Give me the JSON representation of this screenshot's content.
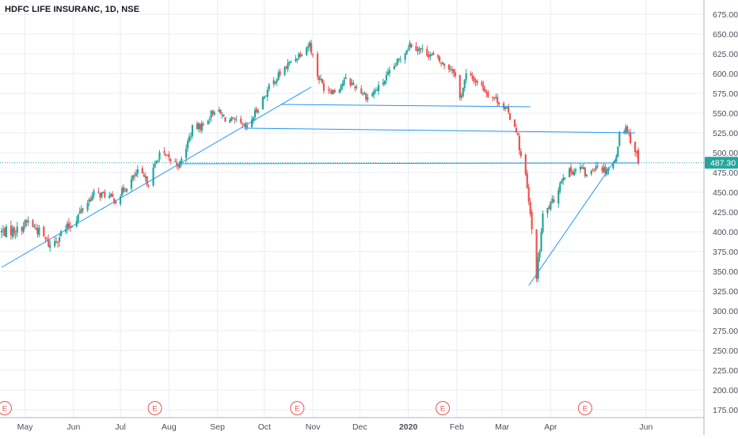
{
  "header": {
    "title": "HDFC LIFE INSURANC, 1D, NSE"
  },
  "colors": {
    "up": "#26a69a",
    "down": "#ef5350",
    "line": "#2196f3",
    "grid": "#e8eef6",
    "axis_text": "#4a4f5c",
    "price_label_bg": "#26a69a",
    "earnings": "#ef5350"
  },
  "chart_data": {
    "type": "candlestick",
    "title": "HDFC LIFE INSURANC, 1D, NSE",
    "ylim": [
      165,
      685
    ],
    "y_ticks": [
      "675.00",
      "650.00",
      "625.00",
      "600.00",
      "575.00",
      "550.00",
      "525.00",
      "500.00",
      "475.00",
      "450.00",
      "425.00",
      "400.00",
      "375.00",
      "350.00",
      "325.00",
      "300.00",
      "275.00",
      "250.00",
      "225.00",
      "200.00",
      "175.00"
    ],
    "x_ticks": [
      {
        "label": "May",
        "date": "2019-05-01"
      },
      {
        "label": "Jun",
        "date": "2019-06-01"
      },
      {
        "label": "Jul",
        "date": "2019-07-01"
      },
      {
        "label": "Aug",
        "date": "2019-08-01"
      },
      {
        "label": "Sep",
        "date": "2019-09-01"
      },
      {
        "label": "Oct",
        "date": "2019-10-01"
      },
      {
        "label": "Nov",
        "date": "2019-11-01"
      },
      {
        "label": "Dec",
        "date": "2019-12-01"
      },
      {
        "label": "2020",
        "date": "2020-01-01",
        "bold": true
      },
      {
        "label": "Feb",
        "date": "2020-02-01"
      },
      {
        "label": "Mar",
        "date": "2020-03-01"
      },
      {
        "label": "Apr",
        "date": "2020-04-01"
      },
      {
        "label": "Jun",
        "date": "2020-06-01"
      }
    ],
    "x_range": [
      "2019-04-15",
      "2020-07-08"
    ],
    "last_price": {
      "label": "487.30",
      "value": 487.3
    },
    "earnings_markers": [
      {
        "label": "E",
        "date": "2019-04-18"
      },
      {
        "label": "E",
        "date": "2019-07-23"
      },
      {
        "label": "E",
        "date": "2019-10-22"
      },
      {
        "label": "E",
        "date": "2020-01-23"
      },
      {
        "label": "E",
        "date": "2020-04-23"
      }
    ],
    "trendlines": [
      {
        "name": "support-1",
        "from": [
          "2019-04-16",
          355
        ],
        "to": [
          "2019-10-31",
          583
        ]
      },
      {
        "name": "resistance-1",
        "from": [
          "2019-10-12",
          561
        ],
        "to": [
          "2020-03-19",
          558
        ]
      },
      {
        "name": "neckline",
        "from": [
          "2019-09-18",
          531
        ],
        "to": [
          "2020-05-25",
          525
        ]
      },
      {
        "name": "support-2",
        "from": [
          "2019-08-08",
          486
        ],
        "to": [
          "2020-05-28",
          487
        ]
      },
      {
        "name": "support-3",
        "from": [
          "2020-03-18",
          332
        ],
        "to": [
          "2020-05-13",
          493
        ]
      }
    ],
    "anchors": [
      [
        "2019-04-16",
        400
      ],
      [
        "2019-04-26",
        402
      ],
      [
        "2019-05-03",
        413
      ],
      [
        "2019-05-10",
        400
      ],
      [
        "2019-05-15",
        388
      ],
      [
        "2019-05-17",
        382
      ],
      [
        "2019-05-24",
        398
      ],
      [
        "2019-05-31",
        410
      ],
      [
        "2019-06-07",
        430
      ],
      [
        "2019-06-14",
        448
      ],
      [
        "2019-06-21",
        447
      ],
      [
        "2019-06-28",
        440
      ],
      [
        "2019-07-05",
        458
      ],
      [
        "2019-07-12",
        475
      ],
      [
        "2019-07-19",
        462
      ],
      [
        "2019-07-26",
        500
      ],
      [
        "2019-08-02",
        490
      ],
      [
        "2019-08-08",
        485
      ],
      [
        "2019-08-16",
        530
      ],
      [
        "2019-08-23",
        535
      ],
      [
        "2019-08-30",
        555
      ],
      [
        "2019-09-06",
        543
      ],
      [
        "2019-09-13",
        538
      ],
      [
        "2019-09-20",
        530
      ],
      [
        "2019-09-27",
        558
      ],
      [
        "2019-10-04",
        582
      ],
      [
        "2019-10-11",
        600
      ],
      [
        "2019-10-18",
        615
      ],
      [
        "2019-10-25",
        628
      ],
      [
        "2019-10-30",
        638
      ],
      [
        "2019-11-04",
        598
      ],
      [
        "2019-11-08",
        583
      ],
      [
        "2019-11-15",
        578
      ],
      [
        "2019-11-22",
        592
      ],
      [
        "2019-11-29",
        583
      ],
      [
        "2019-12-06",
        570
      ],
      [
        "2019-12-13",
        582
      ],
      [
        "2019-12-20",
        600
      ],
      [
        "2019-12-27",
        620
      ],
      [
        "2020-01-02",
        638
      ],
      [
        "2020-01-09",
        630
      ],
      [
        "2020-01-16",
        623
      ],
      [
        "2020-01-23",
        612
      ],
      [
        "2020-01-30",
        605
      ],
      [
        "2020-02-03",
        568
      ],
      [
        "2020-02-07",
        598
      ],
      [
        "2020-02-14",
        590
      ],
      [
        "2020-02-21",
        575
      ],
      [
        "2020-02-28",
        565
      ],
      [
        "2020-03-04",
        553
      ],
      [
        "2020-03-10",
        530
      ],
      [
        "2020-03-13",
        495
      ],
      [
        "2020-03-16",
        470
      ],
      [
        "2020-03-19",
        420
      ],
      [
        "2020-03-23",
        345
      ],
      [
        "2020-03-25",
        378
      ],
      [
        "2020-03-27",
        420
      ],
      [
        "2020-04-03",
        440
      ],
      [
        "2020-04-09",
        472
      ],
      [
        "2020-04-16",
        478
      ],
      [
        "2020-04-21",
        480
      ],
      [
        "2020-04-24",
        470
      ],
      [
        "2020-04-30",
        485
      ],
      [
        "2020-05-06",
        478
      ],
      [
        "2020-05-12",
        488
      ],
      [
        "2020-05-15",
        523
      ],
      [
        "2020-05-19",
        533
      ],
      [
        "2020-05-22",
        517
      ],
      [
        "2020-05-26",
        497
      ],
      [
        "2020-05-27",
        487.3
      ]
    ]
  }
}
